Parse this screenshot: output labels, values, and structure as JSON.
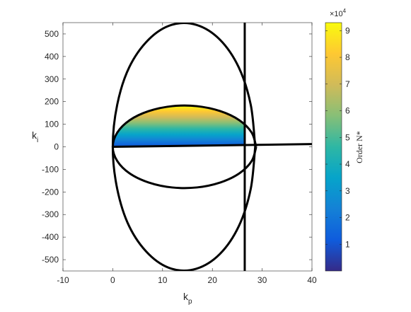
{
  "chart_data": {
    "type": "curves",
    "xlabel": "k",
    "xlabel_sub": "p",
    "ylabel": "k",
    "ylabel_sub": "i",
    "xlim": [
      -10,
      40
    ],
    "xticks": [
      -10,
      0,
      10,
      20,
      30,
      40
    ],
    "ylim": [
      -550,
      550
    ],
    "yticks": [
      -500,
      -400,
      -300,
      -200,
      -100,
      0,
      100,
      200,
      300,
      400,
      500
    ],
    "series": [
      {
        "color": "#000000",
        "x": [
          28.6,
          27.7,
          25.3,
          21.5,
          16.8,
          11.8,
          7.2,
          3.3,
          0.9,
          0,
          0.9,
          3.3,
          7.2,
          11.8,
          16.8,
          21.5,
          25.3,
          27.7,
          28.6
        ],
        "values": [
          0,
          187,
          352,
          475,
          540,
          540,
          475,
          352,
          187,
          0,
          -187,
          -352,
          -475,
          -540,
          -540,
          -475,
          -352,
          -187,
          0
        ]
      },
      {
        "color": "#000000",
        "x": [
          28.8,
          27.9,
          25.4,
          21.6,
          16.9,
          11.9,
          7.2,
          3.4,
          0.9,
          0,
          0.9,
          3.4,
          7.2,
          11.9,
          16.9,
          21.6,
          25.4,
          27.9,
          28.8
        ],
        "values": [
          0,
          63,
          118,
          158,
          180,
          180,
          158,
          118,
          63,
          0,
          -63,
          -118,
          -158,
          -180,
          -180,
          -158,
          -118,
          -63,
          0
        ]
      },
      {
        "color": "#000000",
        "x": [
          0,
          40
        ],
        "values": [
          0,
          12
        ]
      },
      {
        "color": "#000000",
        "x": [
          26.5,
          26.5
        ],
        "values": [
          -550,
          550
        ]
      }
    ],
    "surface": {
      "y": [
        0,
        180
      ],
      "z": [
        1,
        9.2
      ]
    },
    "colorbar": {
      "label": "Order N*",
      "multiplier_label": "×10",
      "multiplier_power": 4,
      "clim": [
        0,
        9.3
      ],
      "ticks": [
        1,
        2,
        3,
        4,
        5,
        6,
        7,
        8,
        9
      ],
      "colormap": [
        "#352a87",
        "#0f5cdd",
        "#1481d6",
        "#06a4ca",
        "#2eb7a4",
        "#87bf77",
        "#d1bb59",
        "#fec832",
        "#f9fb0e"
      ]
    }
  }
}
